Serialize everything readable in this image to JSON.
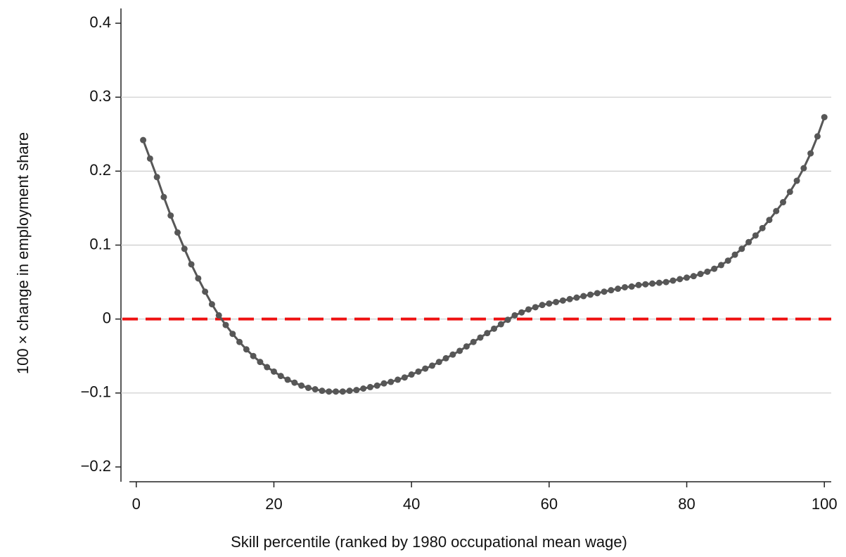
{
  "chart_data": {
    "type": "line",
    "y_label": "100 × change in employment share",
    "x_label": "Skill percentile (ranked by 1980 occupational mean wage)",
    "x": [
      1,
      2,
      3,
      4,
      5,
      6,
      7,
      8,
      9,
      10,
      11,
      12,
      13,
      14,
      15,
      16,
      17,
      18,
      19,
      20,
      21,
      22,
      23,
      24,
      25,
      26,
      27,
      28,
      29,
      30,
      31,
      32,
      33,
      34,
      35,
      36,
      37,
      38,
      39,
      40,
      41,
      42,
      43,
      44,
      45,
      46,
      47,
      48,
      49,
      50,
      51,
      52,
      53,
      54,
      55,
      56,
      57,
      58,
      59,
      60,
      61,
      62,
      63,
      64,
      65,
      66,
      67,
      68,
      69,
      70,
      71,
      72,
      73,
      74,
      75,
      76,
      77,
      78,
      79,
      80,
      81,
      82,
      83,
      84,
      85,
      86,
      87,
      88,
      89,
      90,
      91,
      92,
      93,
      94,
      95,
      96,
      97,
      98,
      99,
      100
    ],
    "series": [
      {
        "color": "#575757",
        "values": [
          0.242,
          0.217,
          0.192,
          0.165,
          0.14,
          0.117,
          0.095,
          0.074,
          0.055,
          0.037,
          0.02,
          0.005,
          -0.008,
          -0.02,
          -0.031,
          -0.041,
          -0.05,
          -0.058,
          -0.065,
          -0.071,
          -0.077,
          -0.082,
          -0.086,
          -0.09,
          -0.093,
          -0.095,
          -0.097,
          -0.098,
          -0.098,
          -0.098,
          -0.097,
          -0.096,
          -0.094,
          -0.092,
          -0.09,
          -0.087,
          -0.085,
          -0.082,
          -0.079,
          -0.075,
          -0.071,
          -0.067,
          -0.063,
          -0.058,
          -0.053,
          -0.048,
          -0.043,
          -0.037,
          -0.031,
          -0.025,
          -0.019,
          -0.013,
          -0.007,
          -0.001,
          0.005,
          0.009,
          0.013,
          0.016,
          0.019,
          0.021,
          0.023,
          0.025,
          0.027,
          0.029,
          0.031,
          0.033,
          0.035,
          0.037,
          0.039,
          0.041,
          0.043,
          0.044,
          0.046,
          0.047,
          0.048,
          0.049,
          0.05,
          0.052,
          0.054,
          0.056,
          0.058,
          0.061,
          0.064,
          0.068,
          0.073,
          0.079,
          0.087,
          0.095,
          0.104,
          0.113,
          0.123,
          0.134,
          0.146,
          0.158,
          0.172,
          0.187,
          0.204,
          0.224,
          0.247,
          0.273
        ]
      }
    ],
    "xlim": [
      -1,
      101
    ],
    "xticks": [
      0,
      20,
      40,
      60,
      80,
      100
    ],
    "ylim": [
      -0.22,
      0.42
    ],
    "yticks": [
      {
        "value": -0.2,
        "label": "−0.2"
      },
      {
        "value": -0.1,
        "label": "−0.1"
      },
      0,
      0.1,
      0.2,
      0.3,
      0.4
    ],
    "grid": true,
    "grid_color": "#cccccc",
    "reference_line": {
      "value": 0,
      "color": "#ee1111"
    }
  }
}
